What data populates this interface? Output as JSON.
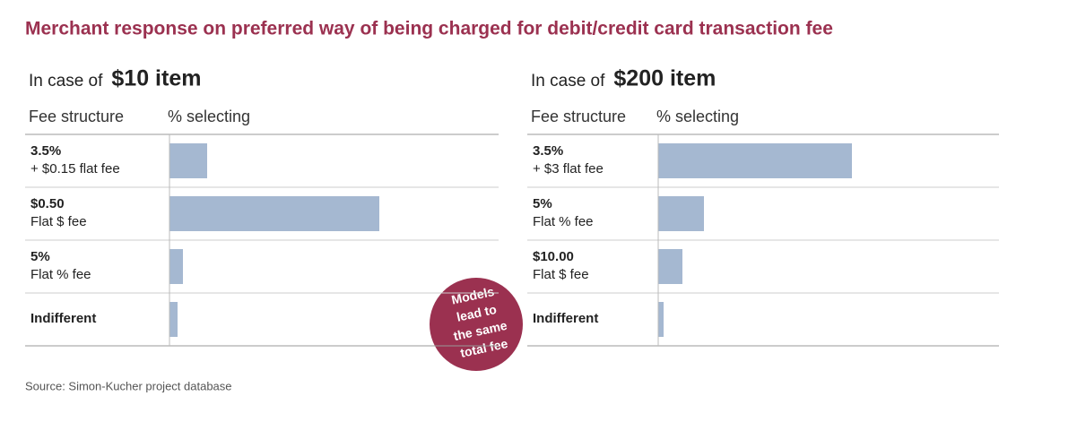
{
  "title": "Merchant response on preferred way of being charged for debit/credit card transaction fee",
  "source": "Source: Simon-Kucher project database",
  "annotation": [
    "Models",
    "lead to",
    "the same",
    "total fee"
  ],
  "chart_data": [
    {
      "type": "hbar",
      "subtitle": "In case of",
      "subtitle_bold": "$10 item",
      "label_header": "Fee structure",
      "value_header": "% selecting",
      "categories": [
        "3.5%",
        "$0.50",
        "5%",
        "Indifferent"
      ],
      "sublabels": [
        "+ $0.15 flat fee",
        "Flat $ fee",
        "Flat % fee",
        null
      ],
      "values": [
        14,
        78,
        5,
        3
      ],
      "color": "#a5b8d1",
      "xlim": [
        0,
        100
      ]
    },
    {
      "type": "hbar",
      "subtitle": "In case of",
      "subtitle_bold": "$200 item",
      "label_header": "Fee structure",
      "value_header": "% selecting",
      "categories": [
        "3.5%",
        "5%",
        "$10.00",
        "Indifferent"
      ],
      "sublabels": [
        "+ $3 flat fee",
        "Flat % fee",
        "Flat $ fee",
        null
      ],
      "values": [
        72,
        17,
        9,
        2
      ],
      "color": "#a5b8d1",
      "xlim": [
        0,
        100
      ]
    }
  ]
}
